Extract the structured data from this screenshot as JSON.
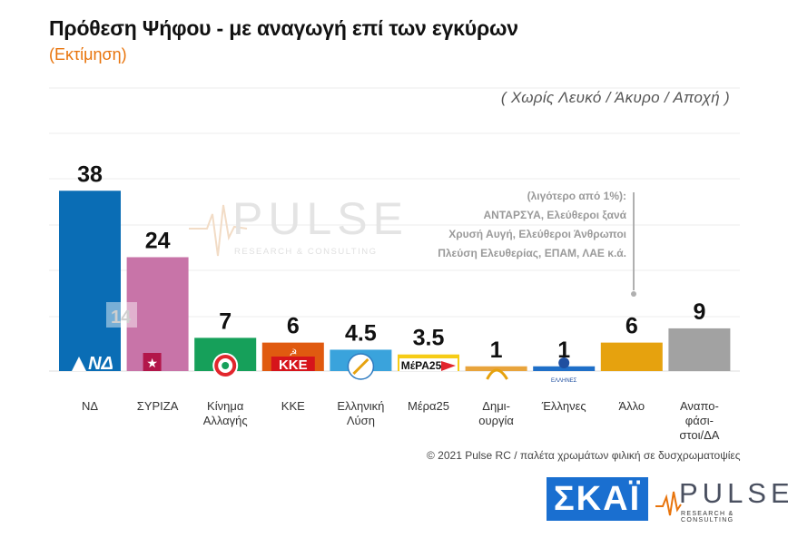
{
  "title": "Πρόθεση Ψήφου - με αναγωγή επί των εγκύρων",
  "subtitle": "(Εκτίμηση)",
  "note": "( Χωρίς Λευκό / Άκυρο / Αποχή )",
  "watermark": {
    "word": "PULSE",
    "tagline": "RESEARCH & CONSULTING"
  },
  "previous_value_label": "14",
  "annotation": [
    "(λιγότερο από 1%):",
    "ΑΝΤΑΡΣΥΑ, Ελεύθεροι ξανά",
    "Χρυσή Αυγή, Ελεύθεροι Άνθρωποι",
    "Πλεύση Ελευθερίας, ΕΠΑΜ, ΛΑΕ κ.ά."
  ],
  "footer": "© 2021 Pulse RC  /  παλέτα χρωμάτων φιλική σε δυσχρωματοψίες",
  "logos": {
    "skai": "ΣΚΑΪ",
    "pulse": "PULSE",
    "pulse_tag": "RESEARCH & CONSULTING"
  },
  "logo_texts": {
    "kke": "ΚΚΕ",
    "mera25": "ΜέΡΑ25",
    "ellines": "ΕΛΛΗΝΕΣ"
  },
  "chart_data": {
    "type": "bar",
    "categories": [
      [
        "ΝΔ"
      ],
      [
        "ΣΥΡΙΖΑ"
      ],
      [
        "Κίνημα",
        "Αλλαγής"
      ],
      [
        "ΚΚΕ"
      ],
      [
        "Ελληνική",
        "Λύση"
      ],
      [
        "Μέρα25"
      ],
      [
        "Δημι-",
        "ουργία"
      ],
      [
        "Έλληνες"
      ],
      [
        "Άλλο"
      ],
      [
        "Αναπο-",
        "φάσι-",
        "στοι/ΔΑ"
      ]
    ],
    "values": [
      38,
      24,
      7,
      6,
      4.5,
      3.5,
      1,
      1,
      6,
      9
    ],
    "value_labels": [
      "38",
      "24",
      "7",
      "6",
      "4.5",
      "3.5",
      "1",
      "1",
      "6",
      "9"
    ],
    "colors": [
      "#0a6db5",
      "#c874a8",
      "#16a05a",
      "#e05a10",
      "#3aa3dc",
      "#f6cc16",
      "#e8a43c",
      "#1f6fc8",
      "#e6a20e",
      "#a2a2a2"
    ],
    "ylim": [
      0,
      42
    ],
    "grid": true,
    "legend": "none"
  }
}
